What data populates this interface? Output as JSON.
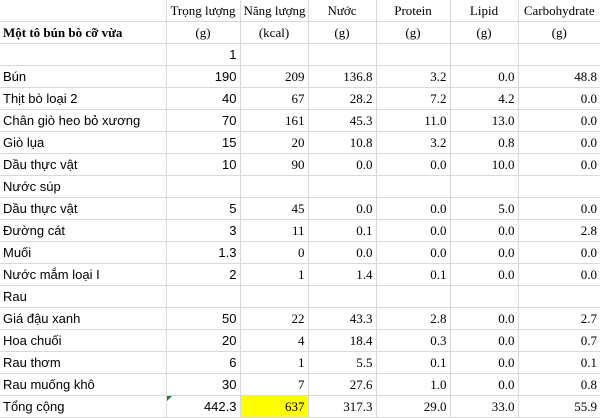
{
  "headers": {
    "label": "Một tô bún bò cỡ vừa",
    "columns": [
      "Trọng lượng",
      "Năng lượng",
      "Nước",
      "Protein",
      "Lipid",
      "Carbohydrate"
    ],
    "units": [
      "(g)",
      "(kcal)",
      "(g)",
      "(g)",
      "(g)",
      "(g)"
    ]
  },
  "portion": "1",
  "rows": [
    {
      "name": "Bún",
      "weight": "190",
      "energy": "209",
      "water": "136.8",
      "protein": "3.2",
      "lipid": "0.0",
      "carb": "48.8"
    },
    {
      "name": "Thịt bò loại 2",
      "weight": "40",
      "energy": "67",
      "water": "28.2",
      "protein": "7.2",
      "lipid": "4.2",
      "carb": "0.0"
    },
    {
      "name": "Chân giò heo bỏ xương",
      "weight": "70",
      "energy": "161",
      "water": "45.3",
      "protein": "11.0",
      "lipid": "13.0",
      "carb": "0.0"
    },
    {
      "name": "Giò lụa",
      "weight": "15",
      "energy": "20",
      "water": "10.8",
      "protein": "3.2",
      "lipid": "0.8",
      "carb": "0.0"
    },
    {
      "name": "Dầu thực vật",
      "weight": "10",
      "energy": "90",
      "water": "0.0",
      "protein": "0.0",
      "lipid": "10.0",
      "carb": "0.0"
    }
  ],
  "soup_section": "Nước súp",
  "soup_rows": [
    {
      "name": "Dầu thực vật",
      "weight": "5",
      "energy": "45",
      "water": "0.0",
      "protein": "0.0",
      "lipid": "5.0",
      "carb": "0.0"
    },
    {
      "name": "Đường cát",
      "weight": "3",
      "energy": "11",
      "water": "0.1",
      "protein": "0.0",
      "lipid": "0.0",
      "carb": "2.8"
    },
    {
      "name": "Muối",
      "weight": "1.3",
      "energy": "0",
      "water": "0.0",
      "protein": "0.0",
      "lipid": "0.0",
      "carb": "0.0"
    },
    {
      "name": "Nước mắm loại I",
      "weight": "2",
      "energy": "1",
      "water": "1.4",
      "protein": "0.1",
      "lipid": "0.0",
      "carb": "0.0"
    }
  ],
  "veg_section": "Rau",
  "veg_rows": [
    {
      "name": "Giá đậu xanh",
      "weight": "50",
      "energy": "22",
      "water": "43.3",
      "protein": "2.8",
      "lipid": "0.0",
      "carb": "2.7"
    },
    {
      "name": "Hoa chuối",
      "weight": "20",
      "energy": "4",
      "water": "18.4",
      "protein": "0.3",
      "lipid": "0.0",
      "carb": "0.7"
    },
    {
      "name": "Rau thơm",
      "weight": "6",
      "energy": "1",
      "water": "5.5",
      "protein": "0.1",
      "lipid": "0.0",
      "carb": "0.1"
    },
    {
      "name": "Rau muống khô",
      "weight": "30",
      "energy": "7",
      "water": "27.6",
      "protein": "1.0",
      "lipid": "0.0",
      "carb": "0.8"
    }
  ],
  "total": {
    "name": "Tổng cộng",
    "weight": "442.3",
    "energy": "637",
    "water": "317.3",
    "protein": "29.0",
    "lipid": "33.0",
    "carb": "55.9"
  },
  "colors": {
    "highlight": "#ffff00",
    "gridline": "#d9d9d9",
    "error_triangle": "#1e7b34"
  }
}
